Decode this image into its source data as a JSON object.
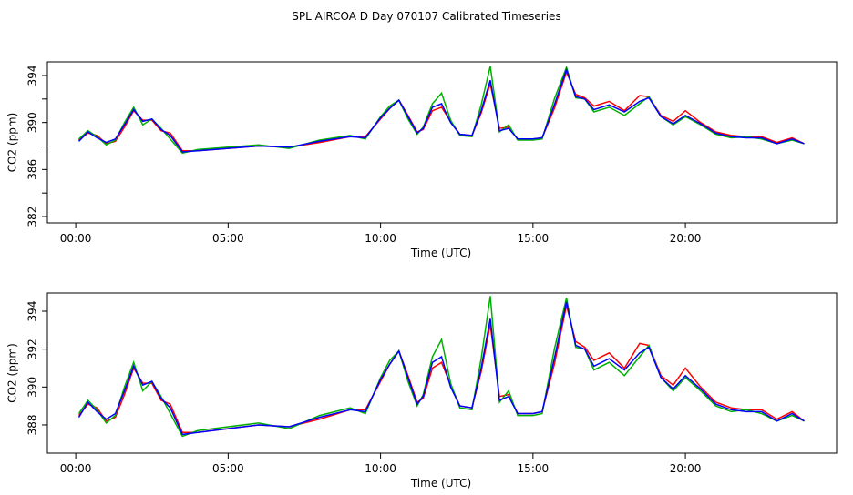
{
  "chart_data": [
    {
      "type": "line",
      "title": "SPL AIRCOA D  Day 070107  Calibrated Timeseries",
      "xlabel": "Time (UTC)",
      "ylabel": "CO2 (ppm)",
      "x": [
        0.1,
        0.4,
        0.7,
        1.0,
        1.3,
        1.6,
        1.9,
        2.2,
        2.5,
        2.8,
        3.1,
        3.5,
        4,
        5,
        6,
        7,
        8,
        9,
        9.5,
        10,
        10.3,
        10.6,
        10.9,
        11.2,
        11.4,
        11.7,
        12,
        12.3,
        12.6,
        13,
        13.3,
        13.6,
        13.9,
        14.2,
        14.5,
        15,
        15.3,
        15.7,
        16.1,
        16.4,
        16.7,
        17,
        17.5,
        18,
        18.5,
        18.8,
        19.2,
        19.6,
        20,
        20.5,
        21,
        21.5,
        22,
        22.5,
        23,
        23.5,
        23.9
      ],
      "series": [
        {
          "color": "#ff0000",
          "values": [
            388.5,
            389.1,
            388.9,
            388.2,
            388.4,
            389.6,
            391.0,
            390.2,
            390.2,
            389.3,
            389.1,
            387.6,
            387.6,
            387.8,
            388.0,
            387.9,
            388.3,
            388.8,
            388.8,
            390.3,
            391.2,
            391.9,
            390.6,
            389.2,
            389.4,
            391.0,
            391.3,
            390.1,
            389.0,
            388.9,
            390.8,
            393.3,
            389.5,
            389.6,
            388.6,
            388.6,
            388.7,
            391.2,
            394.3,
            392.4,
            392.1,
            391.4,
            391.8,
            391.0,
            392.3,
            392.2,
            390.6,
            390.1,
            391.0,
            390.0,
            389.2,
            388.9,
            388.8,
            388.8,
            388.3,
            388.7,
            388.2
          ]
        },
        {
          "color": "#00b000",
          "values": [
            388.6,
            389.3,
            388.8,
            388.1,
            388.5,
            390.0,
            391.3,
            389.8,
            390.3,
            389.5,
            388.6,
            387.4,
            387.7,
            387.9,
            388.1,
            387.8,
            388.5,
            388.9,
            388.6,
            390.5,
            391.4,
            391.9,
            390.3,
            389.0,
            389.6,
            391.6,
            392.5,
            390.2,
            388.9,
            388.8,
            391.5,
            394.8,
            389.2,
            389.8,
            388.5,
            388.5,
            388.6,
            392.0,
            394.7,
            392.1,
            392.0,
            390.9,
            391.3,
            390.6,
            391.6,
            392.2,
            390.5,
            389.8,
            390.5,
            389.8,
            389.0,
            388.7,
            388.8,
            388.6,
            388.2,
            388.5,
            388.2
          ]
        },
        {
          "color": "#0000ff",
          "values": [
            388.4,
            389.2,
            388.7,
            388.3,
            388.6,
            389.8,
            391.1,
            390.1,
            390.3,
            389.4,
            388.9,
            387.5,
            387.6,
            387.8,
            388.0,
            387.9,
            388.4,
            388.8,
            388.7,
            390.4,
            391.2,
            391.9,
            390.5,
            389.1,
            389.5,
            391.3,
            391.6,
            390.0,
            389.0,
            388.9,
            391.0,
            393.6,
            389.3,
            389.5,
            388.6,
            388.6,
            388.7,
            391.5,
            394.5,
            392.2,
            392.0,
            391.1,
            391.5,
            390.9,
            391.8,
            392.1,
            390.5,
            389.9,
            390.6,
            389.9,
            389.1,
            388.8,
            388.7,
            388.7,
            388.2,
            388.6,
            388.2
          ]
        }
      ],
      "xlim": [
        -0.93,
        24.96
      ],
      "ylim": [
        381.46,
        395.16
      ],
      "xticks": [
        {
          "value": 0,
          "label": "00:00"
        },
        {
          "value": 5,
          "label": "05:00"
        },
        {
          "value": 10,
          "label": "10:00"
        },
        {
          "value": 15,
          "label": "15:00"
        },
        {
          "value": 20,
          "label": "20:00"
        }
      ],
      "yticks": [
        382,
        384,
        386,
        388,
        390,
        392,
        394
      ],
      "ytick_labels_shown": [
        382,
        386,
        390,
        394
      ]
    },
    {
      "type": "line",
      "xlabel": "Time (UTC)",
      "ylabel": "CO2 (ppm)",
      "x": [
        0.1,
        0.4,
        0.7,
        1.0,
        1.3,
        1.6,
        1.9,
        2.2,
        2.5,
        2.8,
        3.1,
        3.5,
        4,
        5,
        6,
        7,
        8,
        9,
        9.5,
        10,
        10.3,
        10.6,
        10.9,
        11.2,
        11.4,
        11.7,
        12,
        12.3,
        12.6,
        13,
        13.3,
        13.6,
        13.9,
        14.2,
        14.5,
        15,
        15.3,
        15.7,
        16.1,
        16.4,
        16.7,
        17,
        17.5,
        18,
        18.5,
        18.8,
        19.2,
        19.6,
        20,
        20.5,
        21,
        21.5,
        22,
        22.5,
        23,
        23.5,
        23.9
      ],
      "series": [
        {
          "color": "#ff0000",
          "values": [
            388.5,
            389.1,
            388.9,
            388.2,
            388.4,
            389.6,
            391.0,
            390.2,
            390.2,
            389.3,
            389.1,
            387.6,
            387.6,
            387.8,
            388.0,
            387.9,
            388.3,
            388.8,
            388.8,
            390.3,
            391.2,
            391.9,
            390.6,
            389.2,
            389.4,
            391.0,
            391.3,
            390.1,
            389.0,
            388.9,
            390.8,
            393.3,
            389.5,
            389.6,
            388.6,
            388.6,
            388.7,
            391.2,
            394.3,
            392.4,
            392.1,
            391.4,
            391.8,
            391.0,
            392.3,
            392.2,
            390.6,
            390.1,
            391.0,
            390.0,
            389.2,
            388.9,
            388.8,
            388.8,
            388.3,
            388.7,
            388.2
          ]
        },
        {
          "color": "#00b000",
          "values": [
            388.6,
            389.3,
            388.8,
            388.1,
            388.5,
            390.0,
            391.3,
            389.8,
            390.3,
            389.5,
            388.6,
            387.4,
            387.7,
            387.9,
            388.1,
            387.8,
            388.5,
            388.9,
            388.6,
            390.5,
            391.4,
            391.9,
            390.3,
            389.0,
            389.6,
            391.6,
            392.5,
            390.2,
            388.9,
            388.8,
            391.5,
            394.8,
            389.2,
            389.8,
            388.5,
            388.5,
            388.6,
            392.0,
            394.7,
            392.1,
            392.0,
            390.9,
            391.3,
            390.6,
            391.6,
            392.2,
            390.5,
            389.8,
            390.5,
            389.8,
            389.0,
            388.7,
            388.8,
            388.6,
            388.2,
            388.5,
            388.2
          ]
        },
        {
          "color": "#0000ff",
          "values": [
            388.4,
            389.2,
            388.7,
            388.3,
            388.6,
            389.8,
            391.1,
            390.1,
            390.3,
            389.4,
            388.9,
            387.5,
            387.6,
            387.8,
            388.0,
            387.9,
            388.4,
            388.8,
            388.7,
            390.4,
            391.2,
            391.9,
            390.5,
            389.1,
            389.5,
            391.3,
            391.6,
            390.0,
            389.0,
            388.9,
            391.0,
            393.6,
            389.3,
            389.5,
            388.6,
            388.6,
            388.7,
            391.5,
            394.5,
            392.2,
            392.0,
            391.1,
            391.5,
            390.9,
            391.8,
            392.1,
            390.5,
            389.9,
            390.6,
            389.9,
            389.1,
            388.8,
            388.7,
            388.7,
            388.2,
            388.6,
            388.2
          ]
        }
      ],
      "xlim": [
        -0.93,
        24.96
      ],
      "ylim": [
        386.51,
        394.96
      ],
      "xticks": [
        {
          "value": 0,
          "label": "00:00"
        },
        {
          "value": 5,
          "label": "05:00"
        },
        {
          "value": 10,
          "label": "10:00"
        },
        {
          "value": 15,
          "label": "15:00"
        },
        {
          "value": 20,
          "label": "20:00"
        }
      ],
      "yticks": [
        388,
        390,
        392,
        394
      ],
      "ytick_labels_shown": [
        388,
        390,
        392,
        394
      ]
    }
  ]
}
